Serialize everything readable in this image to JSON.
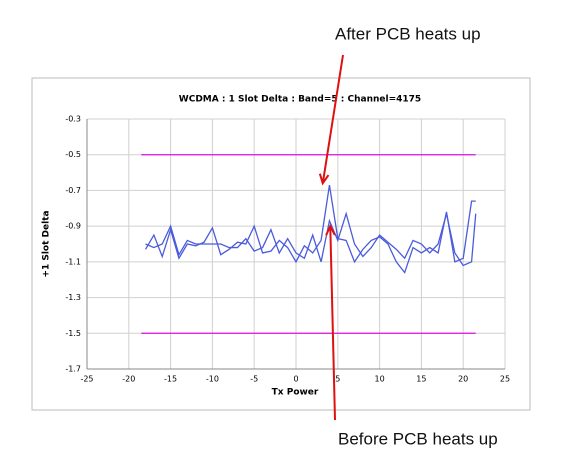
{
  "chart_data": {
    "type": "line",
    "title": "WCDMA : 1 Slot Delta : Band=5 : Channel=4175",
    "x_label": "Tx Power",
    "y_label": "+1 Slot Delta",
    "xlim": [
      -25,
      25
    ],
    "xticks": [
      -25,
      -20,
      -15,
      -10,
      -5,
      0,
      5,
      10,
      15,
      20,
      25
    ],
    "ylim": [
      -1.7,
      -0.3
    ],
    "yticks": [
      -1.7,
      -1.5,
      -1.3,
      -1.1,
      -0.9,
      -0.7,
      -0.5,
      -0.3
    ],
    "grid": true,
    "series": [
      {
        "color": "#4b5bdc",
        "x": [
          -18,
          -17,
          -16,
          -15,
          -14,
          -13,
          -12,
          -11,
          -10,
          -9,
          -8,
          -7,
          -6,
          -5,
          -4,
          -3,
          -2,
          -1,
          0,
          1,
          2,
          3,
          4,
          5,
          6,
          7,
          8,
          9,
          10,
          11,
          12,
          13,
          14,
          15,
          16,
          17,
          18,
          19,
          20,
          21,
          21.5
        ],
        "values": [
          -1.03,
          -0.95,
          -1.07,
          -0.92,
          -1.08,
          -1.0,
          -1.01,
          -0.99,
          -0.91,
          -1.06,
          -1.03,
          -0.99,
          -1.0,
          -0.9,
          -1.05,
          -1.04,
          -0.98,
          -1.02,
          -1.1,
          -1.01,
          -1.05,
          -0.98,
          -0.67,
          -0.97,
          -0.98,
          -1.1,
          -1.03,
          -0.98,
          -0.96,
          -1.0,
          -1.1,
          -1.16,
          -1.02,
          -1.05,
          -1.02,
          -1.05,
          -0.82,
          -1.1,
          -1.08,
          -0.76,
          -0.76
        ]
      },
      {
        "color": "#4b5bdc",
        "x": [
          -18,
          -17,
          -16,
          -15,
          -14,
          -13,
          -12,
          -11,
          -10,
          -9,
          -8,
          -7,
          -6,
          -5,
          -4,
          -3,
          -2,
          -1,
          0,
          1,
          2,
          3,
          4,
          5,
          6,
          7,
          8,
          9,
          10,
          11,
          12,
          13,
          14,
          15,
          16,
          17,
          18,
          19,
          20,
          21,
          21.5
        ],
        "values": [
          -1.0,
          -1.02,
          -1.0,
          -0.9,
          -1.06,
          -0.98,
          -1.0,
          -1.0,
          -1.0,
          -1.0,
          -1.02,
          -1.02,
          -0.97,
          -1.04,
          -1.02,
          -0.92,
          -1.05,
          -0.97,
          -1.05,
          -1.08,
          -0.95,
          -1.1,
          -0.87,
          -0.98,
          -0.83,
          -1.0,
          -1.07,
          -1.02,
          -0.95,
          -0.99,
          -1.03,
          -1.08,
          -0.98,
          -1.0,
          -1.05,
          -1.0,
          -0.83,
          -1.05,
          -1.12,
          -1.1,
          -0.83
        ]
      },
      {
        "color": "#e010e0",
        "x": [
          -18.5,
          21.5
        ],
        "values": [
          -0.5,
          -0.5
        ]
      },
      {
        "color": "#e010e0",
        "x": [
          -18.5,
          21.5
        ],
        "values": [
          -1.5,
          -1.5
        ]
      }
    ],
    "annotations": [
      {
        "text": "After PCB heats up",
        "x": 3.2,
        "y": -0.66,
        "color": "#e01010"
      },
      {
        "text": "Before PCB heats up",
        "x": 4.1,
        "y": -0.9,
        "color": "#e01010"
      }
    ]
  }
}
